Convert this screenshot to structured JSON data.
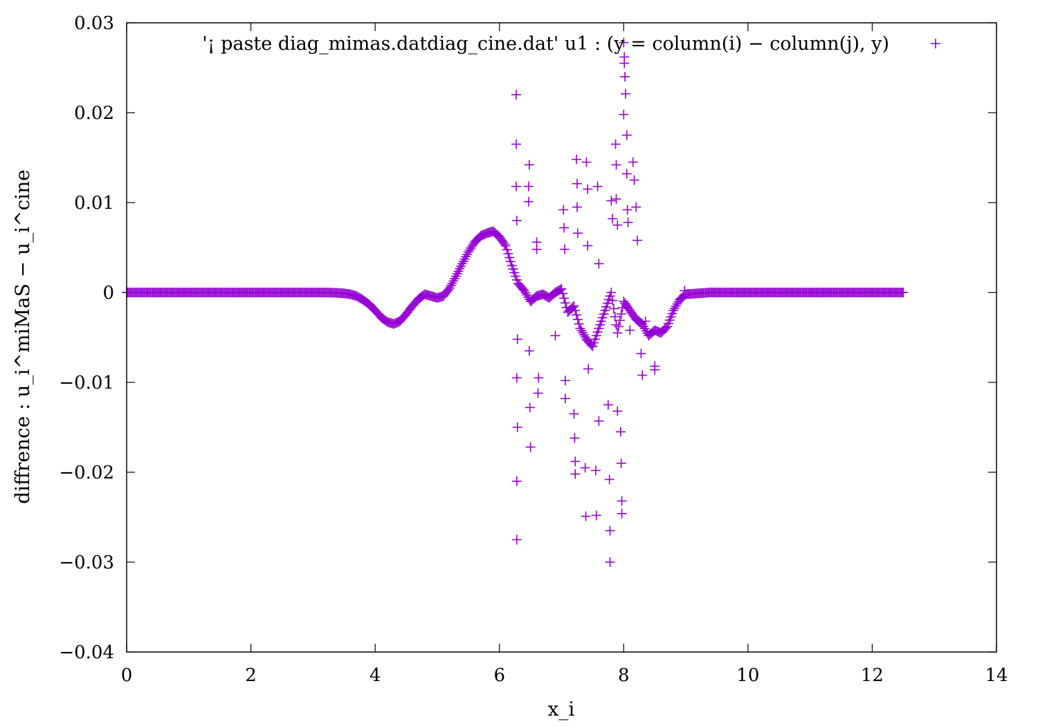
{
  "chart_data": {
    "type": "scatter",
    "title": "",
    "xlabel": "x_i",
    "ylabel": "diffrence : u_i^miMaS − u_i^cine",
    "xlim": [
      0,
      14
    ],
    "ylim": [
      -0.04,
      0.03
    ],
    "x_ticks": [
      "0",
      "2",
      "4",
      "6",
      "8",
      "10",
      "12",
      "14"
    ],
    "y_ticks": [
      "−0.04",
      "−0.03",
      "−0.02",
      "−0.01",
      "0",
      "0.01",
      "0.02",
      "0.03"
    ],
    "grid": false,
    "legend_position": "top-right",
    "marker": "+",
    "series": [
      {
        "name": "'¡ paste diag_mimas.datdiag_cine.dat' u1 : (y = column(i) − column(j), y)",
        "color": "#9400d3",
        "points": [
          [
            0.0,
            0.0
          ],
          [
            0.2,
            0.0
          ],
          [
            0.4,
            0.0
          ],
          [
            0.6,
            0.0
          ],
          [
            0.8,
            0.0
          ],
          [
            1.0,
            0.0
          ],
          [
            1.2,
            0.0
          ],
          [
            1.4,
            0.0
          ],
          [
            1.6,
            0.0
          ],
          [
            1.8,
            0.0
          ],
          [
            2.0,
            0.0
          ],
          [
            2.2,
            0.0
          ],
          [
            2.4,
            0.0
          ],
          [
            2.6,
            0.0
          ],
          [
            2.8,
            0.0
          ],
          [
            3.0,
            0.0
          ],
          [
            3.2,
            0.0
          ],
          [
            3.4,
            -5e-05
          ],
          [
            3.5,
            -0.0001
          ],
          [
            3.6,
            -0.0002
          ],
          [
            3.7,
            -0.0004
          ],
          [
            3.8,
            -0.0008
          ],
          [
            3.9,
            -0.0013
          ],
          [
            4.0,
            -0.002
          ],
          [
            4.1,
            -0.0028
          ],
          [
            4.2,
            -0.0033
          ],
          [
            4.3,
            -0.0035
          ],
          [
            4.4,
            -0.0032
          ],
          [
            4.5,
            -0.0024
          ],
          [
            4.6,
            -0.0015
          ],
          [
            4.7,
            -0.0007
          ],
          [
            4.8,
            -0.0002
          ],
          [
            4.9,
            -0.0004
          ],
          [
            5.0,
            -0.0006
          ],
          [
            5.1,
            -0.0004
          ],
          [
            5.2,
            0.0005
          ],
          [
            5.3,
            0.0018
          ],
          [
            5.4,
            0.0032
          ],
          [
            5.5,
            0.0045
          ],
          [
            5.6,
            0.0056
          ],
          [
            5.7,
            0.0063
          ],
          [
            5.8,
            0.0066
          ],
          [
            5.9,
            0.0068
          ],
          [
            6.0,
            0.0062
          ],
          [
            6.1,
            0.0052
          ],
          [
            6.2,
            0.003
          ],
          [
            6.3,
            0.001
          ],
          [
            6.4,
            0.0002
          ],
          [
            6.5,
            -0.001
          ],
          [
            6.6,
            -0.0004
          ],
          [
            6.7,
            -0.0002
          ],
          [
            6.8,
            -0.0006
          ],
          [
            6.9,
            0.0
          ],
          [
            7.0,
            0.0004
          ],
          [
            7.1,
            -0.0022
          ],
          [
            7.2,
            -0.0015
          ],
          [
            7.3,
            -0.004
          ],
          [
            7.4,
            -0.0052
          ],
          [
            7.5,
            -0.006
          ],
          [
            7.6,
            -0.004
          ],
          [
            7.7,
            -0.002
          ],
          [
            7.8,
            0.0
          ],
          [
            7.9,
            -0.0045
          ],
          [
            8.0,
            -0.001
          ],
          [
            8.1,
            -0.002
          ],
          [
            8.2,
            -0.003
          ],
          [
            8.3,
            -0.0035
          ],
          [
            8.4,
            -0.0048
          ],
          [
            8.5,
            -0.0042
          ],
          [
            8.6,
            -0.0045
          ],
          [
            8.7,
            -0.0038
          ],
          [
            8.8,
            -0.002
          ],
          [
            8.9,
            -0.0008
          ],
          [
            9.0,
            -0.0002
          ],
          [
            9.2,
            -0.0001
          ],
          [
            9.4,
            0.0
          ],
          [
            9.6,
            0.0
          ],
          [
            9.8,
            0.0
          ],
          [
            10.0,
            0.0
          ],
          [
            10.2,
            0.0
          ],
          [
            10.4,
            0.0
          ],
          [
            10.6,
            0.0
          ],
          [
            10.8,
            0.0
          ],
          [
            11.0,
            0.0
          ],
          [
            11.2,
            0.0
          ],
          [
            11.4,
            0.0
          ],
          [
            11.6,
            0.0
          ],
          [
            11.8,
            0.0
          ],
          [
            12.0,
            0.0
          ],
          [
            12.2,
            0.0
          ],
          [
            12.4,
            0.0
          ],
          [
            12.5,
            0.0
          ],
          [
            6.27,
            0.022
          ],
          [
            6.27,
            0.0165
          ],
          [
            6.27,
            0.0118
          ],
          [
            6.28,
            0.008
          ],
          [
            6.29,
            -0.0052
          ],
          [
            6.28,
            -0.0095
          ],
          [
            6.29,
            -0.015
          ],
          [
            6.28,
            -0.021
          ],
          [
            6.28,
            -0.0275
          ],
          [
            6.48,
            0.0142
          ],
          [
            6.47,
            0.0118
          ],
          [
            6.47,
            0.0101
          ],
          [
            6.48,
            -0.0065
          ],
          [
            6.49,
            -0.0128
          ],
          [
            6.5,
            -0.0172
          ],
          [
            6.6,
            0.0048
          ],
          [
            6.6,
            0.0056
          ],
          [
            6.62,
            -0.0112
          ],
          [
            6.63,
            -0.0095
          ],
          [
            6.9,
            -0.0048
          ],
          [
            7.03,
            0.0092
          ],
          [
            7.04,
            0.0072
          ],
          [
            7.05,
            0.0048
          ],
          [
            7.06,
            -0.0098
          ],
          [
            7.06,
            -0.0118
          ],
          [
            7.2,
            -0.0135
          ],
          [
            7.21,
            -0.0162
          ],
          [
            7.22,
            -0.0188
          ],
          [
            7.22,
            -0.0202
          ],
          [
            7.24,
            0.0148
          ],
          [
            7.25,
            0.0121
          ],
          [
            7.25,
            0.0095
          ],
          [
            7.26,
            0.0066
          ],
          [
            7.38,
            -0.0195
          ],
          [
            7.39,
            -0.0249
          ],
          [
            7.4,
            0.0145
          ],
          [
            7.42,
            0.0115
          ],
          [
            7.42,
            0.0052
          ],
          [
            7.43,
            -0.0085
          ],
          [
            7.55,
            -0.0198
          ],
          [
            7.56,
            -0.0248
          ],
          [
            7.58,
            0.0118
          ],
          [
            7.6,
            0.0032
          ],
          [
            7.6,
            -0.0143
          ],
          [
            7.75,
            -0.0125
          ],
          [
            7.77,
            -0.0208
          ],
          [
            7.78,
            -0.0265
          ],
          [
            7.78,
            -0.03
          ],
          [
            7.8,
            0.0102
          ],
          [
            7.82,
            0.0082
          ],
          [
            7.87,
            0.0165
          ],
          [
            7.88,
            0.0142
          ],
          [
            7.88,
            0.0104
          ],
          [
            7.9,
            0.0075
          ],
          [
            7.9,
            -0.0132
          ],
          [
            7.95,
            -0.0155
          ],
          [
            7.96,
            -0.019
          ],
          [
            7.97,
            -0.0232
          ],
          [
            7.97,
            -0.0246
          ],
          [
            8.0,
            0.0278
          ],
          [
            8.01,
            0.0262
          ],
          [
            8.01,
            0.0255
          ],
          [
            8.02,
            0.024
          ],
          [
            8.03,
            0.0221
          ],
          [
            8.0,
            0.0198
          ],
          [
            8.05,
            0.0175
          ],
          [
            8.05,
            0.0132
          ],
          [
            8.06,
            0.0092
          ],
          [
            8.07,
            0.0078
          ],
          [
            8.1,
            -0.0042
          ],
          [
            8.15,
            0.0145
          ],
          [
            8.17,
            0.0125
          ],
          [
            8.2,
            0.0095
          ],
          [
            8.22,
            0.0058
          ],
          [
            8.28,
            -0.0068
          ],
          [
            8.3,
            -0.0092
          ],
          [
            8.35,
            -0.0032
          ],
          [
            8.5,
            -0.0082
          ],
          [
            8.5,
            -0.0086
          ],
          [
            8.98,
            0.0002
          ]
        ]
      }
    ]
  }
}
